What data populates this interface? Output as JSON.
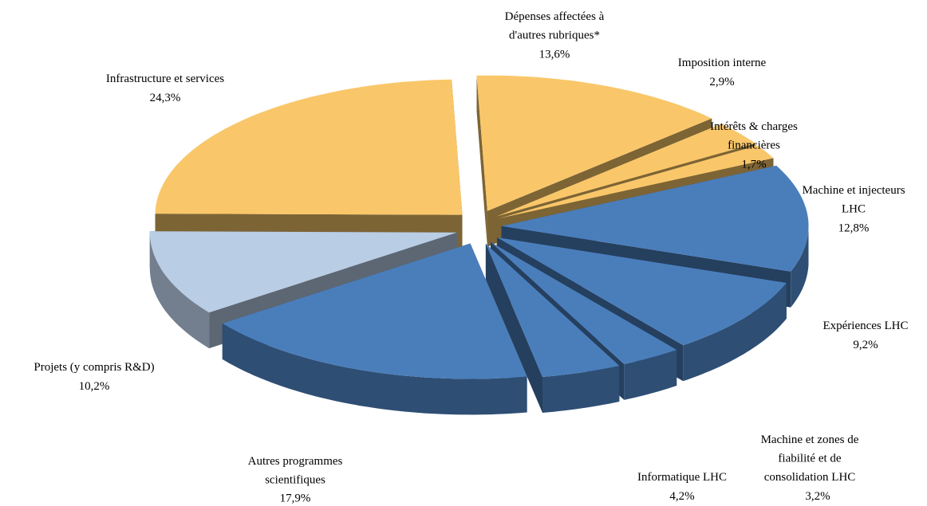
{
  "chart_data": {
    "type": "pie",
    "categories": [
      "Dépenses affectées à d'autres rubriques*",
      "Imposition interne",
      "Intérêts & charges financières",
      "Machine et injecteurs LHC",
      "Expériences LHC",
      "Machine et zones de fiabilité et de consolidation LHC",
      "Informatique LHC",
      "Autres programmes scientifiques",
      "Projets (y compris R&D)",
      "Infrastructure et services"
    ],
    "values": [
      13.6,
      2.9,
      1.7,
      12.8,
      9.2,
      3.2,
      4.2,
      17.9,
      10.2,
      24.3
    ],
    "value_labels": [
      "13,6%",
      "2,9%",
      "1,7%",
      "12,8%",
      "9,2%",
      "3,2%",
      "4,2%",
      "17,9%",
      "10,2%",
      "24,3%"
    ],
    "colors": [
      "#f9c76a",
      "#f9c76a",
      "#f9c76a",
      "#4a7ebb",
      "#4a7ebb",
      "#4a7ebb",
      "#4a7ebb",
      "#4a7ebb",
      "#b9cde5",
      "#f9c76a"
    ]
  }
}
